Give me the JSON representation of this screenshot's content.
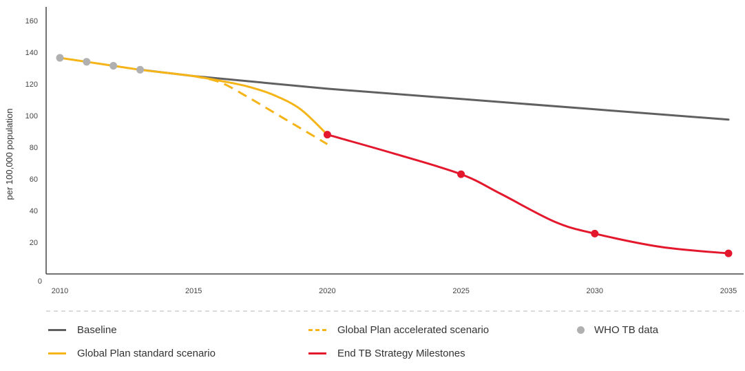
{
  "chart_data": {
    "type": "line",
    "ylabel": "per 100,000 population",
    "xlabel": "",
    "xlim": [
      2010,
      2035
    ],
    "ylim": [
      0,
      160
    ],
    "x_ticks": [
      "2010",
      "2015",
      "2020",
      "2025",
      "2030",
      "2035"
    ],
    "y_ticks": [
      "0",
      "20",
      "40",
      "60",
      "80",
      "100",
      "120",
      "140",
      "160"
    ],
    "grid": false,
    "legend_position": "bottom",
    "series": [
      {
        "name": "Baseline",
        "style": "solid",
        "color": "#606060",
        "x": [
          2013,
          2015,
          2020,
          2025,
          2030,
          2035
        ],
        "y": [
          129,
          125,
          117,
          110.5,
          104,
          97.5
        ]
      },
      {
        "name": "Global Plan standard scenario",
        "style": "solid",
        "color": "#f5b417",
        "x": [
          2010,
          2011,
          2012,
          2013,
          2014,
          2015,
          2016,
          2017,
          2018,
          2019,
          2020
        ],
        "y": [
          136.5,
          134,
          131.5,
          129,
          127,
          125,
          122,
          118.5,
          113,
          104,
          88
        ]
      },
      {
        "name": "Global Plan accelerated scenario",
        "style": "dashed",
        "color": "#f5b417",
        "x": [
          2015,
          2016,
          2017,
          2018,
          2019,
          2020
        ],
        "y": [
          125,
          121,
          112,
          102,
          92,
          82
        ]
      },
      {
        "name": "WHO TB data",
        "style": "points",
        "color": "#b0b0b0",
        "x": [
          2010,
          2011,
          2012,
          2013
        ],
        "y": [
          136.5,
          134,
          131.5,
          129
        ]
      },
      {
        "name": "End TB Strategy Milestones",
        "style": "solid-with-points",
        "color": "#e3182d",
        "x": [
          2020,
          2022.5,
          2025,
          2026.5,
          2028.5,
          2030,
          2032.5,
          2035
        ],
        "y": [
          88,
          76,
          63,
          50.5,
          33,
          25.5,
          17,
          13
        ],
        "points_x": [
          2020,
          2025,
          2030,
          2035
        ],
        "points_y": [
          88,
          63,
          25.5,
          13
        ]
      }
    ]
  },
  "legend": {
    "items": [
      {
        "label": "Baseline",
        "kind": "line",
        "color": "#606060"
      },
      {
        "label": "Global Plan accelerated scenario",
        "kind": "dash",
        "color": "#f5b417"
      },
      {
        "label": "WHO TB data",
        "kind": "dot",
        "color": "#b0b0b0"
      },
      {
        "label": "Global Plan standard scenario",
        "kind": "line",
        "color": "#f5b417"
      },
      {
        "label": "End TB Strategy Milestones",
        "kind": "line",
        "color": "#e3182d"
      }
    ]
  }
}
